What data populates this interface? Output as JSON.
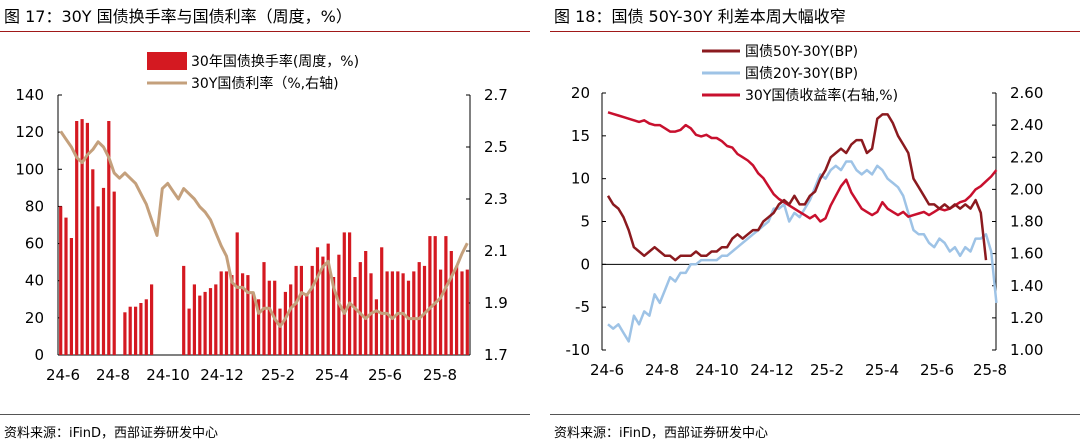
{
  "colors": {
    "bar_red": "#d41921",
    "tan": "#c4a07c",
    "dark_red": "#8b1a1f",
    "light_blue": "#9ec3e6",
    "red": "#c8102e",
    "rule": "#a01818"
  },
  "left": {
    "title": "图 17：30Y 国债换手率与国债利率（周度，%）",
    "source": "资料来源：iFinD，西部证券研发中心"
  },
  "right": {
    "title": "图 18：国债 50Y-30Y 利差本周大幅收窄",
    "source": "资料来源：iFinD，西部证券研发中心"
  },
  "chart_data": [
    {
      "type": "bar",
      "title": "图 17：30Y 国债换手率与国债利率（周度，%）",
      "x_tick_labels": [
        "24-6",
        "24-8",
        "24-10",
        "24-12",
        "25-2",
        "25-4",
        "25-6",
        "25-8"
      ],
      "y_left": {
        "range": [
          0,
          140
        ],
        "ticks": [
          0,
          20,
          40,
          60,
          80,
          100,
          120,
          140
        ]
      },
      "y_right": {
        "range": [
          1.7,
          2.7
        ],
        "ticks": [
          1.7,
          1.9,
          2.1,
          2.3,
          2.5,
          2.7
        ]
      },
      "legend_position": "top-center",
      "grid": false,
      "series": [
        {
          "name": "30年国债换手率(周度，%)",
          "axis": "left",
          "kind": "bar",
          "values": [
            80,
            74,
            63,
            126,
            127,
            125,
            100,
            80,
            90,
            126,
            88,
            null,
            23,
            26,
            26,
            28,
            30,
            38,
            null,
            null,
            null,
            null,
            null,
            48,
            25,
            38,
            32,
            34,
            36,
            38,
            45,
            45,
            43,
            66,
            44,
            43,
            33,
            30,
            50,
            40,
            40,
            25,
            34,
            38,
            48,
            48,
            33,
            48,
            58,
            53,
            60,
            42,
            54,
            66,
            66,
            42,
            50,
            56,
            44,
            30,
            58,
            45,
            45,
            45,
            44,
            40,
            45,
            50,
            48,
            64,
            64,
            46,
            64,
            56,
            48,
            45,
            46
          ]
        },
        {
          "name": "30Y国债利率（%,右轴)",
          "axis": "right",
          "kind": "line",
          "values": [
            2.56,
            2.53,
            2.5,
            2.46,
            2.44,
            2.47,
            2.49,
            2.52,
            2.5,
            2.46,
            2.4,
            2.38,
            2.4,
            2.38,
            2.36,
            2.32,
            2.28,
            2.22,
            2.16,
            2.34,
            2.36,
            2.33,
            2.3,
            2.34,
            2.32,
            2.3,
            2.27,
            2.25,
            2.22,
            2.17,
            2.12,
            2.08,
            1.98,
            1.96,
            1.96,
            1.94,
            1.94,
            1.86,
            1.88,
            1.88,
            1.84,
            1.81,
            1.84,
            1.88,
            1.9,
            1.94,
            1.93,
            1.96,
            2.0,
            2.04,
            2.06,
            1.96,
            1.9,
            1.86,
            1.9,
            1.88,
            1.86,
            1.84,
            1.86,
            1.87,
            1.86,
            1.86,
            1.84,
            1.86,
            1.86,
            1.84,
            1.84,
            1.84,
            1.86,
            1.88,
            1.9,
            1.92,
            1.96,
            2.0,
            2.04,
            2.09,
            2.13
          ]
        }
      ]
    },
    {
      "type": "line",
      "title": "图 18：国债 50Y-30Y 利差本周大幅收窄",
      "x_tick_labels": [
        "24-6",
        "24-8",
        "24-10",
        "24-12",
        "25-2",
        "25-4",
        "25-6",
        "25-8"
      ],
      "y_left": {
        "range": [
          -10,
          20
        ],
        "ticks": [
          -10,
          -5,
          0,
          5,
          10,
          15,
          20
        ]
      },
      "y_right": {
        "range": [
          1.0,
          2.6
        ],
        "ticks": [
          "1.00",
          "1.20",
          "1.40",
          "1.60",
          "1.80",
          "2.00",
          "2.20",
          "2.40",
          "2.60"
        ]
      },
      "legend_position": "top-center",
      "grid": false,
      "series": [
        {
          "name": "国债50Y-30Y(BP)",
          "axis": "left",
          "values": [
            8,
            7,
            6.5,
            5.5,
            4,
            2,
            1.5,
            1,
            1.5,
            2,
            1.5,
            1,
            1,
            0.5,
            1,
            1,
            1,
            1.5,
            1,
            1,
            1.5,
            1.5,
            2,
            2,
            3,
            3.5,
            3,
            3.5,
            4,
            4,
            5,
            5.5,
            6,
            7,
            7.5,
            7,
            8,
            7,
            7,
            8,
            8.5,
            10,
            11,
            12.5,
            13,
            13.5,
            13,
            14,
            14.5,
            14.5,
            13,
            13.5,
            17,
            17.5,
            17.5,
            16.5,
            15,
            14,
            13,
            10,
            9,
            8,
            7,
            7,
            6.5,
            7,
            6.5,
            7,
            6.5,
            7,
            6.5,
            7.5,
            6,
            0.5
          ]
        },
        {
          "name": "国债20Y-30Y(BP)",
          "axis": "left",
          "values": [
            -7,
            -7.5,
            -7,
            -8,
            -9,
            -6,
            -7,
            -5.5,
            -6,
            -3.5,
            -4.5,
            -3,
            -1.5,
            -2,
            -1,
            -1,
            0,
            0,
            0.5,
            0.5,
            0.5,
            0.5,
            1,
            1,
            1.5,
            2,
            2.5,
            3,
            3.5,
            4,
            4.5,
            5,
            6.5,
            6.5,
            7,
            5,
            6,
            5.5,
            6.5,
            7.5,
            9,
            10.5,
            10,
            11,
            11.5,
            11,
            12,
            12,
            11,
            10.5,
            11,
            10.5,
            11.5,
            11,
            10,
            9.5,
            9,
            8,
            6,
            4,
            3.5,
            3.5,
            2.5,
            2,
            3,
            2.5,
            1.5,
            2,
            1,
            2,
            1.5,
            3,
            3,
            3.5,
            1.5,
            -4.5
          ]
        },
        {
          "name": "30Y国债收益率(右轴,%)",
          "axis": "right",
          "values": [
            2.48,
            2.47,
            2.46,
            2.45,
            2.44,
            2.43,
            2.42,
            2.43,
            2.41,
            2.4,
            2.4,
            2.38,
            2.36,
            2.36,
            2.37,
            2.4,
            2.38,
            2.34,
            2.33,
            2.34,
            2.32,
            2.32,
            2.3,
            2.27,
            2.26,
            2.22,
            2.2,
            2.18,
            2.15,
            2.1,
            2.07,
            2.02,
            1.97,
            1.94,
            1.92,
            1.9,
            1.88,
            1.86,
            1.84,
            1.82,
            1.84,
            1.8,
            1.82,
            1.9,
            1.96,
            2.02,
            2.06,
            1.98,
            1.93,
            1.88,
            1.86,
            1.84,
            1.86,
            1.92,
            1.88,
            1.86,
            1.84,
            1.86,
            1.83,
            1.84,
            1.85,
            1.86,
            1.84,
            1.86,
            1.88,
            1.87,
            1.88,
            1.9,
            1.92,
            1.93,
            1.96,
            2.0,
            2.02,
            2.05,
            2.08,
            2.12
          ]
        }
      ]
    }
  ]
}
